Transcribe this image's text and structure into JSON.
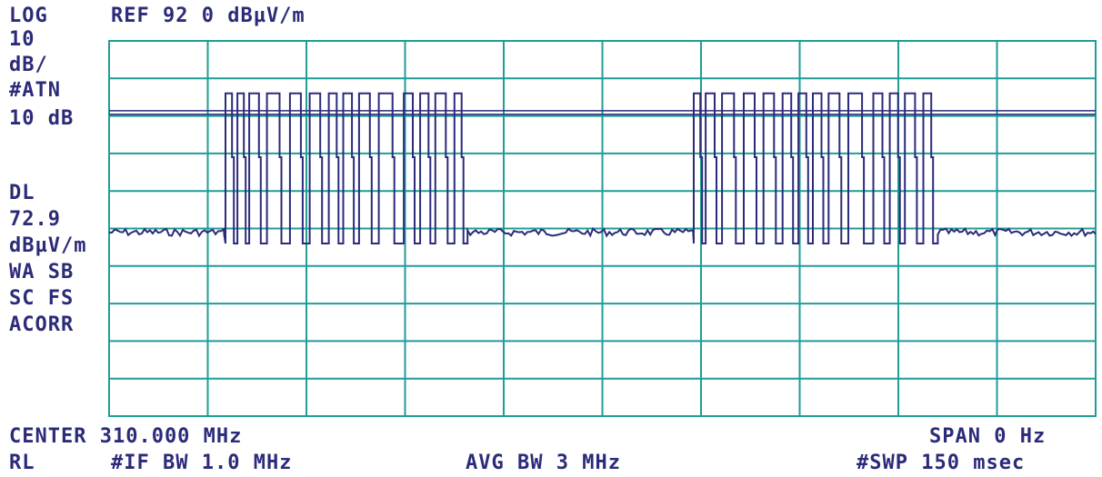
{
  "header": {
    "scale": "LOG",
    "ref_level": "REF 92 0 dBµV/m"
  },
  "side_panel": {
    "lines": [
      "10",
      "dB/",
      "#ATN",
      "10 dB",
      "",
      "DL",
      "72.9",
      "dBµV/m",
      "WA SB",
      "SC FS",
      "ACORR"
    ]
  },
  "footer": {
    "center": "CENTER 310.000 MHz",
    "span": "SPAN 0 Hz",
    "rl": "RL",
    "if_bw": "#IF BW 1.0 MHz",
    "avg_bw": "AVG BW 3 MHz",
    "sweep": "#SWP 150 msec"
  },
  "colors": {
    "grid": "#1f9e95",
    "trace": "#2b2b7a",
    "text": "#2b2b7a",
    "background": "#ffffff"
  },
  "chart_data": {
    "type": "line",
    "title": "",
    "xlabel": "",
    "ylabel": "",
    "x_unit": "msec",
    "y_unit": "dBµV/m",
    "xlim": [
      0,
      150
    ],
    "ylim": [
      -8,
      92
    ],
    "grid": true,
    "y_ref_level": 92,
    "y_scale_per_div": 10,
    "display_line_level": 72.9,
    "noise_floor": 41,
    "pulse_level_high": 78,
    "pulse_level_mid": 61,
    "pulse_low": 38,
    "bursts": [
      {
        "start_ms": 17.5,
        "end_ms": 54.5,
        "pulse_x_ms": [
          17.7,
          19.5,
          21.3,
          24.0,
          27.5,
          30.5,
          33.4,
          35.6,
          38.0,
          41.0,
          44.8,
          47.3,
          49.6,
          52.5
        ]
      },
      {
        "start_ms": 88.8,
        "end_ms": 126.0,
        "pulse_x_ms": [
          88.9,
          90.7,
          93.2,
          96.5,
          99.5,
          102.4,
          104.8,
          107.0,
          109.4,
          112.4,
          116.2,
          118.7,
          121.0,
          123.8
        ]
      }
    ]
  }
}
